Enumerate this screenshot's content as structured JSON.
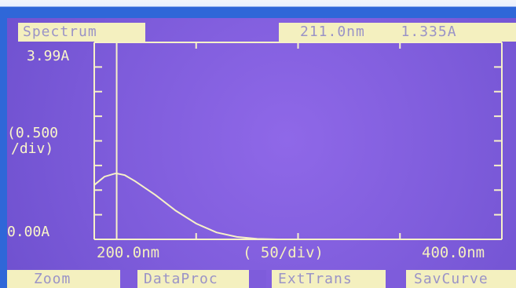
{
  "instrument": {
    "mode": "Spectrum",
    "cursor_wavelength": "211.0nm",
    "cursor_absorbance": "1.335A",
    "y_axis": {
      "max_label": "3.99A",
      "scale_label_line1": "(0.500",
      "scale_label_line2": "/div)",
      "min_label": "0.00A"
    },
    "x_axis": {
      "start_label": "200.0nm",
      "scale_label": "(  50/div)",
      "end_label": "400.0nm"
    },
    "buttons": [
      {
        "label": "Zoom"
      },
      {
        "label": "DataProc"
      },
      {
        "label": "ExtTrans"
      },
      {
        "label": "SavCurve"
      }
    ]
  },
  "chart_data": {
    "type": "line",
    "xlabel": "",
    "ylabel": "",
    "xlim": [
      200,
      400
    ],
    "ylim": [
      0,
      3.99
    ],
    "series": [
      {
        "x": [
          200,
          205,
          210,
          211,
          215,
          220,
          230,
          240,
          250,
          260,
          270,
          280,
          290
        ],
        "values": [
          1.1,
          1.27,
          1.33,
          1.335,
          1.3,
          1.18,
          0.9,
          0.58,
          0.32,
          0.14,
          0.05,
          0.01,
          0.0
        ]
      }
    ],
    "cursor": {
      "x": 211.0,
      "y": 1.335
    },
    "colors": {
      "screen": "#7e5cdb",
      "trace": "#f7f1c8",
      "header": "#f4f0bf",
      "header_text": "#9a93c7"
    }
  }
}
